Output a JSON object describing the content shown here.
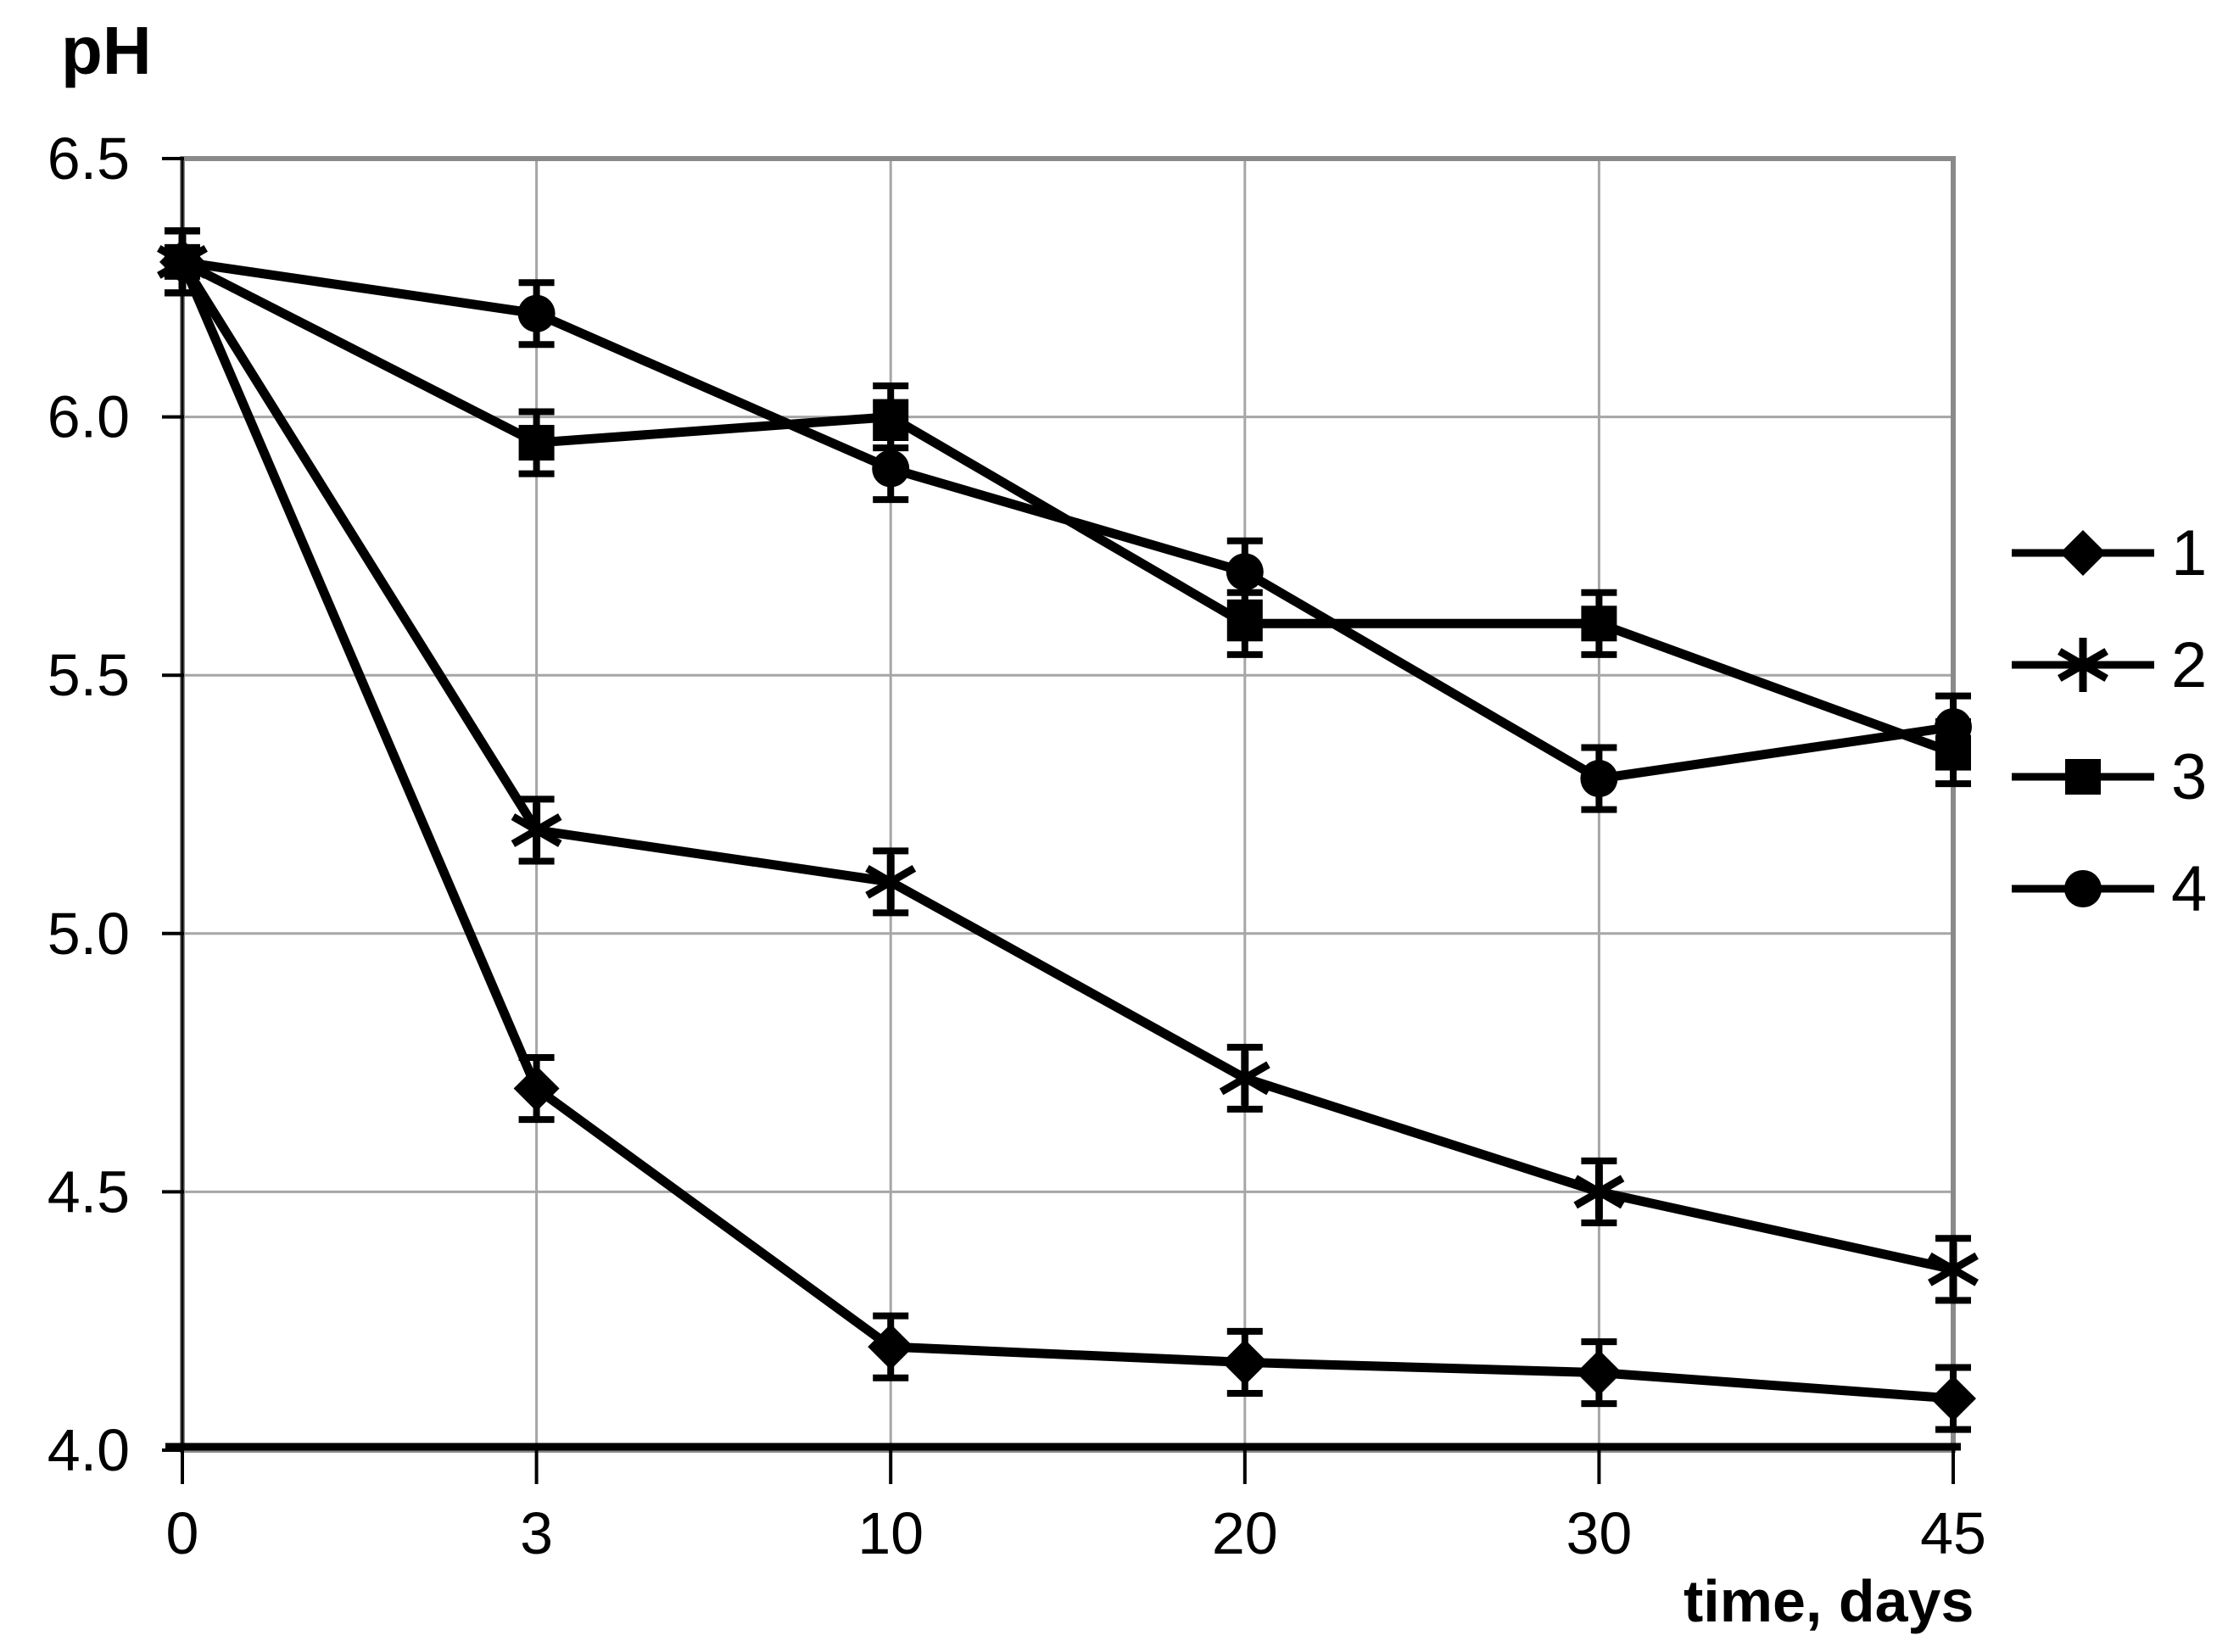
{
  "page": {
    "background": "#ffffff"
  },
  "chart_data": {
    "type": "line",
    "title": "",
    "ylabel": "pH",
    "xlabel": "time, days",
    "x_categories": [
      0,
      3,
      10,
      20,
      30,
      45
    ],
    "x_tick_labels": [
      "0",
      "3",
      "10",
      "20",
      "30",
      "45"
    ],
    "y_ticks": [
      4.0,
      4.5,
      5.0,
      5.5,
      6.0,
      6.5
    ],
    "y_tick_labels": [
      "4.0",
      "4.5",
      "5.0",
      "5.5",
      "6.0",
      "6.5"
    ],
    "ylim": [
      4.0,
      6.5
    ],
    "x_axis_type": "category",
    "grid": "both",
    "legend_position": "right",
    "error_bar": 0.06,
    "series": [
      {
        "name": "1",
        "marker": "diamond",
        "values": [
          6.3,
          4.7,
          4.2,
          4.17,
          4.15,
          4.1
        ]
      },
      {
        "name": "2",
        "marker": "asterisk",
        "values": [
          6.3,
          5.2,
          5.1,
          4.72,
          4.5,
          4.35
        ]
      },
      {
        "name": "3",
        "marker": "square",
        "values": [
          6.3,
          5.95,
          6.0,
          5.6,
          5.6,
          5.35
        ]
      },
      {
        "name": "4",
        "marker": "circle",
        "values": [
          6.3,
          6.2,
          5.9,
          5.7,
          5.3,
          5.4
        ]
      }
    ],
    "colors": {
      "series": "#000000",
      "grid": "#a6a6a6",
      "frame": "#8a8a8a",
      "axis": "#000000",
      "text": "#000000"
    }
  }
}
